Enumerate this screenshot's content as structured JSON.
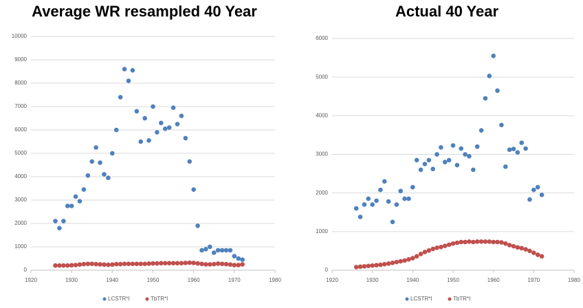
{
  "chart_data": [
    {
      "type": "scatter",
      "title": "Average WR resampled 40 Year",
      "x": [
        1926,
        1927,
        1928,
        1929,
        1930,
        1931,
        1932,
        1933,
        1934,
        1935,
        1936,
        1937,
        1938,
        1939,
        1940,
        1941,
        1942,
        1943,
        1944,
        1945,
        1946,
        1947,
        1948,
        1949,
        1950,
        1951,
        1952,
        1953,
        1954,
        1955,
        1956,
        1957,
        1958,
        1959,
        1960,
        1961,
        1962,
        1963,
        1964,
        1965,
        1966,
        1967,
        1968,
        1969,
        1970,
        1971,
        1972
      ],
      "series": [
        {
          "name": "LCSTR*I",
          "color": "#4f81bd",
          "values": [
            2100,
            1800,
            2100,
            2750,
            2750,
            3150,
            2950,
            3450,
            4050,
            4650,
            5250,
            4600,
            4100,
            3950,
            5000,
            6000,
            7400,
            8600,
            8100,
            8550,
            6800,
            5500,
            6500,
            5550,
            7000,
            5900,
            6300,
            6050,
            6100,
            6950,
            6250,
            6600,
            5650,
            4650,
            3450,
            1900,
            850,
            900,
            1000,
            750,
            850,
            850,
            850,
            850,
            600,
            500,
            450
          ]
        },
        {
          "name": "TbTR*I",
          "color": "#c0504d",
          "values": [
            200,
            200,
            200,
            200,
            210,
            220,
            240,
            260,
            270,
            270,
            260,
            250,
            240,
            230,
            240,
            260,
            260,
            270,
            270,
            270,
            270,
            270,
            270,
            280,
            290,
            290,
            300,
            300,
            300,
            300,
            300,
            300,
            310,
            320,
            310,
            290,
            270,
            250,
            250,
            260,
            280,
            270,
            260,
            240,
            220,
            220,
            250
          ]
        }
      ],
      "xlim": [
        1920,
        1980
      ],
      "xticks": [
        1920,
        1930,
        1940,
        1950,
        1960,
        1970,
        1980
      ],
      "ylim": [
        0,
        10000
      ],
      "yticks": [
        0,
        1000,
        2000,
        3000,
        4000,
        5000,
        6000,
        7000,
        8000,
        9000,
        10000
      ],
      "grid": true,
      "legend": "bottom"
    },
    {
      "type": "scatter",
      "title": "Actual 40 Year",
      "x": [
        1926,
        1927,
        1928,
        1929,
        1930,
        1931,
        1932,
        1933,
        1934,
        1935,
        1936,
        1937,
        1938,
        1939,
        1940,
        1941,
        1942,
        1943,
        1944,
        1945,
        1946,
        1947,
        1948,
        1949,
        1950,
        1951,
        1952,
        1953,
        1954,
        1955,
        1956,
        1957,
        1958,
        1959,
        1960,
        1961,
        1962,
        1963,
        1964,
        1965,
        1966,
        1967,
        1968,
        1969,
        1970,
        1971,
        1972
      ],
      "series": [
        {
          "name": "LCSTR*I",
          "color": "#4f81bd",
          "values": [
            1600,
            1380,
            1700,
            1850,
            1700,
            1800,
            2080,
            2300,
            1780,
            1250,
            1700,
            2050,
            1850,
            1850,
            2150,
            2850,
            2600,
            2750,
            2850,
            2620,
            3000,
            3180,
            2800,
            2850,
            3230,
            2720,
            3150,
            3000,
            2950,
            2600,
            3200,
            3620,
            4450,
            5030,
            5550,
            4650,
            3760,
            2680,
            3120,
            3140,
            3050,
            3300,
            3150,
            1830,
            2080,
            2150,
            1950
          ]
        },
        {
          "name": "TbTR*I",
          "color": "#c0504d",
          "values": [
            80,
            90,
            100,
            110,
            120,
            130,
            140,
            155,
            170,
            190,
            210,
            230,
            250,
            280,
            310,
            360,
            420,
            470,
            510,
            550,
            580,
            600,
            630,
            660,
            690,
            710,
            730,
            730,
            740,
            730,
            740,
            740,
            740,
            740,
            730,
            730,
            720,
            690,
            650,
            620,
            590,
            570,
            540,
            500,
            450,
            400,
            360
          ]
        }
      ],
      "xlim": [
        1920,
        1980
      ],
      "xticks": [
        1920,
        1930,
        1940,
        1950,
        1960,
        1970,
        1980
      ],
      "ylim": [
        0,
        6000
      ],
      "yticks": [
        0,
        1000,
        2000,
        3000,
        4000,
        5000,
        6000
      ],
      "grid": true,
      "legend": "bottom"
    }
  ]
}
